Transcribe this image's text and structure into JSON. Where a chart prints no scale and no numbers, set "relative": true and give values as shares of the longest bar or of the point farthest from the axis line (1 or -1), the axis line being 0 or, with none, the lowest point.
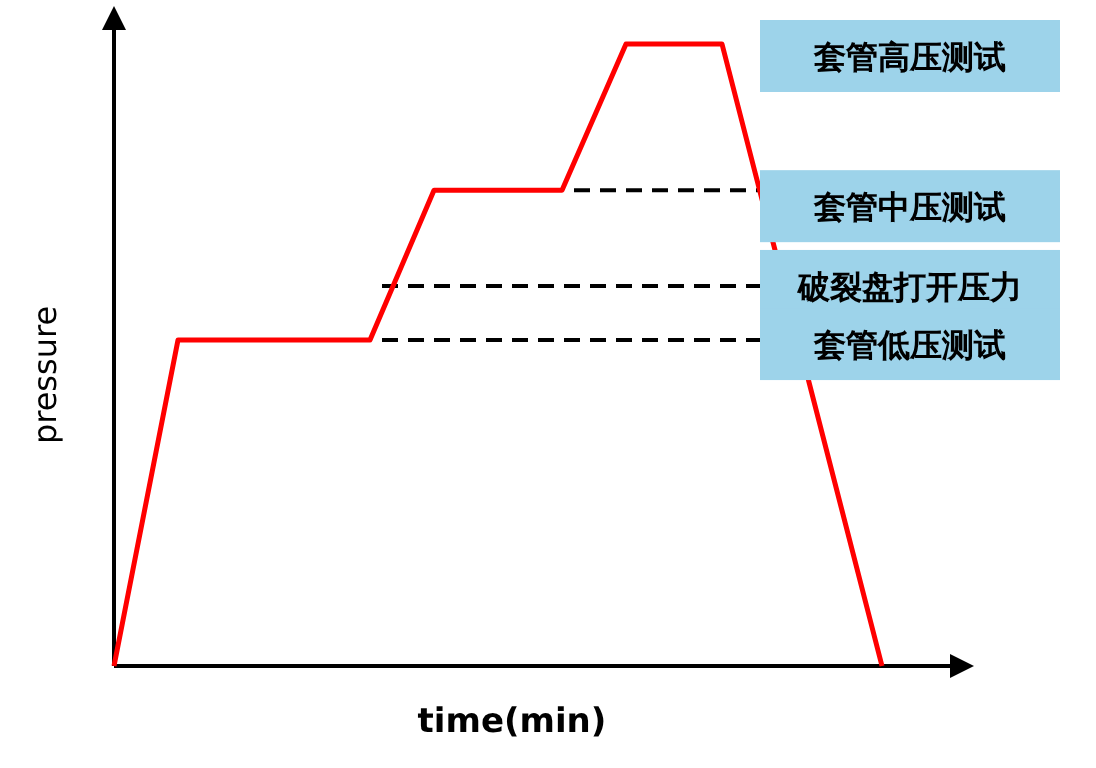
{
  "chart_data": {
    "type": "line",
    "relative": true,
    "xlabel": "time(min)",
    "ylabel": "pressure",
    "categories": [
      null,
      null,
      null,
      null,
      null,
      null,
      null,
      null,
      null,
      null,
      null,
      null,
      null,
      null,
      null,
      null,
      null,
      null,
      null,
      null,
      null,
      null,
      null,
      null,
      null
    ],
    "series": [
      {
        "color": "#ff0000",
        "values": [
          0,
          null,
          0.524,
          null,
          null,
          null,
          null,
          null,
          0.524,
          null,
          0.765,
          null,
          null,
          null,
          0.765,
          null,
          1,
          null,
          null,
          1,
          null,
          null,
          null,
          null,
          0
        ]
      }
    ],
    "ref_lines": [
      {
        "axis": "y",
        "value": 0.765,
        "label": "套管中压测试",
        "color": "#000000",
        "line_style": "dashed"
      },
      {
        "axis": "y",
        "value": 0.611,
        "label": "破裂盘打开压力",
        "color": "#000000",
        "line_style": "dashed"
      },
      {
        "axis": "y",
        "value": 0.524,
        "label": "套管低压测试",
        "color": "#000000",
        "line_style": "dashed"
      }
    ],
    "annotations": [
      "套管高压测试"
    ],
    "marker": "none",
    "line_style": "solid"
  }
}
